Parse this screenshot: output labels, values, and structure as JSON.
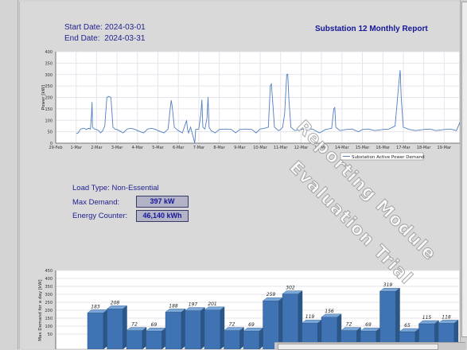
{
  "report": {
    "start_label": "Start Date:",
    "start_value": "2024-03-01",
    "end_label": "End Date:",
    "end_value": "2024-03-31",
    "title": "Substation 12 Monthly Report",
    "load_type": "Load Type: Non-Essential",
    "max_demand_label": "Max Demand:",
    "max_demand_value": "397 kW",
    "energy_label": "Energy Counter:",
    "energy_value": "46,140 kWh",
    "watermark_line1": "Reporting Module",
    "watermark_line2": "Evaluation Trial"
  },
  "colors": {
    "line": "#4f7fbf",
    "bar_front": "#3f73b4",
    "bar_top": "#7aa6d8",
    "bar_side": "#2c5686",
    "text": "#1f1f8f"
  },
  "chart_data": [
    {
      "type": "line",
      "ylabel": "Power [kW]",
      "ylim": [
        0,
        400
      ],
      "yticks": [
        0,
        50,
        100,
        150,
        200,
        250,
        300,
        350,
        400
      ],
      "xticks": [
        "29-Feb",
        "1-Mar",
        "2-Mar",
        "3-Mar",
        "4-Mar",
        "5-Mar",
        "6-Mar",
        "7-Mar",
        "8-Mar",
        "9-Mar",
        "10-Mar",
        "11-Mar",
        "12-Mar",
        "13-Mar",
        "14-Mar",
        "15-Mar",
        "16-Mar",
        "17-Mar",
        "18-Mar",
        "19-Mar"
      ],
      "grid": true,
      "legend": "Substation Active Power Demand",
      "legend_position": "bottom-right",
      "series": [
        {
          "name": "Substation Active Power Demand",
          "points": [
            [
              1.0,
              42
            ],
            [
              1.1,
              45
            ],
            [
              1.2,
              60
            ],
            [
              1.25,
              62
            ],
            [
              1.3,
              65
            ],
            [
              1.4,
              65
            ],
            [
              1.5,
              60
            ],
            [
              1.6,
              65
            ],
            [
              1.7,
              62
            ],
            [
              1.75,
              125
            ],
            [
              1.78,
              180
            ],
            [
              1.8,
              70
            ],
            [
              1.9,
              62
            ],
            [
              2.0,
              60
            ],
            [
              2.1,
              55
            ],
            [
              2.2,
              45
            ],
            [
              2.3,
              55
            ],
            [
              2.4,
              75
            ],
            [
              2.5,
              200
            ],
            [
              2.6,
              205
            ],
            [
              2.7,
              200
            ],
            [
              2.8,
              70
            ],
            [
              2.9,
              62
            ],
            [
              3.0,
              60
            ],
            [
              3.1,
              55
            ],
            [
              3.3,
              45
            ],
            [
              3.5,
              62
            ],
            [
              3.7,
              65
            ],
            [
              3.9,
              60
            ],
            [
              4.0,
              55
            ],
            [
              4.3,
              45
            ],
            [
              4.5,
              62
            ],
            [
              4.7,
              65
            ],
            [
              4.9,
              60
            ],
            [
              5.0,
              55
            ],
            [
              5.3,
              45
            ],
            [
              5.5,
              62
            ],
            [
              5.6,
              150
            ],
            [
              5.65,
              188
            ],
            [
              5.7,
              160
            ],
            [
              5.8,
              70
            ],
            [
              5.9,
              62
            ],
            [
              6.0,
              55
            ],
            [
              6.2,
              45
            ],
            [
              6.4,
              100
            ],
            [
              6.45,
              60
            ],
            [
              6.5,
              45
            ],
            [
              6.6,
              70
            ],
            [
              6.8,
              0
            ],
            [
              6.85,
              60
            ],
            [
              7.0,
              62
            ],
            [
              7.1,
              130
            ],
            [
              7.15,
              190
            ],
            [
              7.2,
              70
            ],
            [
              7.3,
              62
            ],
            [
              7.4,
              110
            ],
            [
              7.45,
              201
            ],
            [
              7.5,
              70
            ],
            [
              7.6,
              55
            ],
            [
              7.8,
              45
            ],
            [
              8.0,
              60
            ],
            [
              8.3,
              62
            ],
            [
              8.6,
              60
            ],
            [
              8.8,
              45
            ],
            [
              9.0,
              60
            ],
            [
              9.3,
              62
            ],
            [
              9.6,
              60
            ],
            [
              9.8,
              45
            ],
            [
              10.0,
              62
            ],
            [
              10.2,
              65
            ],
            [
              10.4,
              70
            ],
            [
              10.5,
              250
            ],
            [
              10.55,
              259
            ],
            [
              10.6,
              200
            ],
            [
              10.7,
              70
            ],
            [
              10.9,
              55
            ],
            [
              11.0,
              60
            ],
            [
              11.1,
              70
            ],
            [
              11.2,
              130
            ],
            [
              11.3,
              300
            ],
            [
              11.35,
              302
            ],
            [
              11.4,
              200
            ],
            [
              11.5,
              70
            ],
            [
              11.7,
              55
            ],
            [
              12.0,
              60
            ],
            [
              12.3,
              65
            ],
            [
              12.6,
              60
            ],
            [
              12.9,
              45
            ],
            [
              13.2,
              60
            ],
            [
              13.5,
              65
            ],
            [
              13.6,
              150
            ],
            [
              13.65,
              156
            ],
            [
              13.7,
              70
            ],
            [
              13.9,
              55
            ],
            [
              14.2,
              60
            ],
            [
              14.5,
              62
            ],
            [
              14.8,
              50
            ],
            [
              15.0,
              60
            ],
            [
              15.3,
              62
            ],
            [
              15.6,
              55
            ],
            [
              16.0,
              60
            ],
            [
              16.3,
              62
            ],
            [
              16.6,
              75
            ],
            [
              16.8,
              280
            ],
            [
              16.85,
              319
            ],
            [
              16.9,
              200
            ],
            [
              17.0,
              70
            ],
            [
              17.3,
              60
            ],
            [
              17.6,
              55
            ],
            [
              18.0,
              60
            ],
            [
              18.3,
              62
            ],
            [
              18.6,
              55
            ],
            [
              19.0,
              60
            ],
            [
              19.3,
              62
            ],
            [
              19.6,
              55
            ],
            [
              19.9,
              118
            ]
          ]
        }
      ]
    },
    {
      "type": "bar",
      "ylabel": "Max Demand for a day [kW]",
      "ylim": [
        0,
        450
      ],
      "yticks": [
        50,
        100,
        150,
        200,
        250,
        300,
        350,
        400,
        450
      ],
      "series": [
        {
          "values": [
            183,
            208,
            72,
            69,
            188,
            197,
            201,
            72,
            69,
            259,
            302,
            119,
            156,
            72,
            69,
            319,
            65,
            115,
            118
          ]
        }
      ]
    }
  ]
}
